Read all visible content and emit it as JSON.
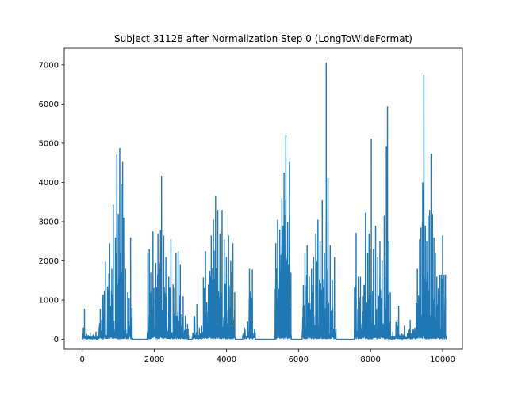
{
  "chart_data": {
    "type": "line",
    "title": "Subject 31128 after Normalization Step 0 (LongToWideFormat)",
    "xlabel": "",
    "ylabel": "",
    "xlim": [
      -500,
      10550
    ],
    "ylim": [
      -250,
      7420
    ],
    "xticks": [
      0,
      2000,
      4000,
      6000,
      8000,
      10000
    ],
    "xtick_labels": [
      "0",
      "2000",
      "4000",
      "6000",
      "8000",
      "10000"
    ],
    "yticks": [
      0,
      1000,
      2000,
      3000,
      4000,
      5000,
      6000,
      7000
    ],
    "ytick_labels": [
      "0",
      "1000",
      "2000",
      "3000",
      "4000",
      "5000",
      "6000",
      "7000"
    ],
    "grid": false,
    "series_color": "#1f77b4",
    "bursts": [
      {
        "start": 0,
        "end": 560,
        "peaks": [
          [
            30,
            300
          ],
          [
            60,
            780
          ],
          [
            120,
            140
          ],
          [
            220,
            180
          ],
          [
            300,
            120
          ],
          [
            380,
            200
          ],
          [
            460,
            90
          ],
          [
            500,
            780
          ],
          [
            540,
            500
          ]
        ]
      },
      {
        "start": 560,
        "end": 1400,
        "peaks": [
          [
            640,
            1980
          ],
          [
            700,
            1350
          ],
          [
            760,
            2450
          ],
          [
            820,
            1800
          ],
          [
            860,
            3430
          ],
          [
            920,
            2600
          ],
          [
            960,
            4710
          ],
          [
            1000,
            3200
          ],
          [
            1040,
            4880
          ],
          [
            1080,
            3950
          ],
          [
            1120,
            4520
          ],
          [
            1150,
            3100
          ],
          [
            1200,
            1800
          ],
          [
            1260,
            1200
          ],
          [
            1300,
            1050
          ],
          [
            1340,
            2600
          ],
          [
            1380,
            800
          ]
        ]
      },
      {
        "start": 1800,
        "end": 2950,
        "peaks": [
          [
            1820,
            2200
          ],
          [
            1860,
            2300
          ],
          [
            1900,
            1700
          ],
          [
            1960,
            2750
          ],
          [
            2040,
            1950
          ],
          [
            2100,
            2700
          ],
          [
            2150,
            1800
          ],
          [
            2200,
            4170
          ],
          [
            2260,
            2650
          ],
          [
            2320,
            2100
          ],
          [
            2400,
            1600
          ],
          [
            2460,
            2550
          ],
          [
            2520,
            1400
          ],
          [
            2600,
            2200
          ],
          [
            2660,
            2250
          ],
          [
            2720,
            1900
          ],
          [
            2800,
            1100
          ],
          [
            2860,
            600
          ],
          [
            2920,
            400
          ]
        ]
      },
      {
        "start": 3050,
        "end": 3300,
        "peaks": [
          [
            3100,
            600
          ],
          [
            3180,
            900
          ],
          [
            3250,
            300
          ]
        ]
      },
      {
        "start": 3300,
        "end": 4250,
        "peaks": [
          [
            3360,
            1580
          ],
          [
            3420,
            2250
          ],
          [
            3500,
            1400
          ],
          [
            3580,
            2650
          ],
          [
            3640,
            3050
          ],
          [
            3700,
            3650
          ],
          [
            3760,
            3300
          ],
          [
            3820,
            2700
          ],
          [
            3880,
            3300
          ],
          [
            3940,
            2550
          ],
          [
            4000,
            2100
          ],
          [
            4060,
            2650
          ],
          [
            4120,
            2000
          ],
          [
            4180,
            2450
          ],
          [
            4230,
            1200
          ]
        ]
      },
      {
        "start": 4450,
        "end": 4800,
        "peaks": [
          [
            4500,
            300
          ],
          [
            4580,
            350
          ],
          [
            4640,
            1800
          ],
          [
            4720,
            1780
          ],
          [
            4780,
            250
          ]
        ]
      },
      {
        "start": 5350,
        "end": 5800,
        "peaks": [
          [
            5370,
            2450
          ],
          [
            5420,
            3050
          ],
          [
            5480,
            2800
          ],
          [
            5540,
            3600
          ],
          [
            5600,
            4250
          ],
          [
            5650,
            5200
          ],
          [
            5700,
            3000
          ],
          [
            5750,
            4520
          ],
          [
            5790,
            1700
          ]
        ]
      },
      {
        "start": 6100,
        "end": 7050,
        "peaks": [
          [
            6180,
            2200
          ],
          [
            6240,
            2400
          ],
          [
            6300,
            1600
          ],
          [
            6360,
            1800
          ],
          [
            6420,
            2100
          ],
          [
            6480,
            2700
          ],
          [
            6540,
            3050
          ],
          [
            6600,
            2500
          ],
          [
            6660,
            3550
          ],
          [
            6720,
            2200
          ],
          [
            6770,
            7060
          ],
          [
            6820,
            4120
          ],
          [
            6880,
            2400
          ],
          [
            6940,
            1500
          ],
          [
            7000,
            2100
          ]
        ]
      },
      {
        "start": 7550,
        "end": 8550,
        "peaks": [
          [
            7600,
            2720
          ],
          [
            7660,
            1600
          ],
          [
            7720,
            1600
          ],
          [
            7800,
            1100
          ],
          [
            7860,
            3230
          ],
          [
            7920,
            2200
          ],
          [
            7960,
            2700
          ],
          [
            8020,
            5120
          ],
          [
            8080,
            2300
          ],
          [
            8140,
            2900
          ],
          [
            8200,
            2100
          ],
          [
            8260,
            2500
          ],
          [
            8320,
            2000
          ],
          [
            8380,
            3150
          ],
          [
            8440,
            4910
          ],
          [
            8470,
            5940
          ],
          [
            8510,
            2500
          ],
          [
            8550,
            1200
          ]
        ]
      },
      {
        "start": 8550,
        "end": 9250,
        "peaks": [
          [
            8620,
            200
          ],
          [
            8700,
            120
          ],
          [
            8780,
            860
          ],
          [
            8860,
            150
          ],
          [
            8940,
            350
          ],
          [
            9020,
            100
          ],
          [
            9100,
            500
          ],
          [
            9180,
            250
          ]
        ]
      },
      {
        "start": 9250,
        "end": 10100,
        "peaks": [
          [
            9300,
            1800
          ],
          [
            9360,
            2550
          ],
          [
            9400,
            2850
          ],
          [
            9440,
            3000
          ],
          [
            9480,
            6740
          ],
          [
            9520,
            2900
          ],
          [
            9560,
            2500
          ],
          [
            9600,
            3150
          ],
          [
            9640,
            3300
          ],
          [
            9680,
            4730
          ],
          [
            9720,
            3200
          ],
          [
            9760,
            2600
          ],
          [
            9800,
            2200
          ],
          [
            9840,
            1600
          ],
          [
            9880,
            1300
          ],
          [
            9920,
            1650
          ],
          [
            9960,
            1650
          ],
          [
            10000,
            2650
          ],
          [
            10040,
            1650
          ],
          [
            10080,
            1650
          ]
        ]
      }
    ]
  }
}
